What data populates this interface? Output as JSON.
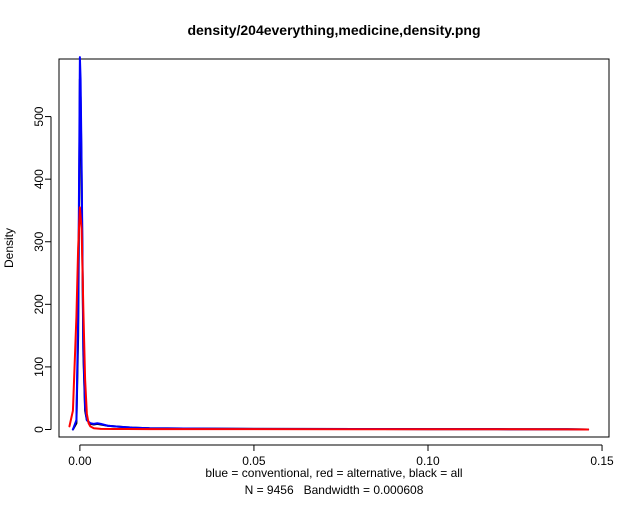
{
  "chart_data": {
    "type": "line",
    "title": "density/204everything,medicine,density.png",
    "ylabel": "Density",
    "xlabel_line1": "blue = conventional, red = alternative, black = all",
    "xlabel_line2": "N = 9456   Bandwidth = 0.000608",
    "xlim": [
      -0.006,
      0.152
    ],
    "ylim": [
      -12,
      592
    ],
    "x_ticks": [
      0.0,
      0.05,
      0.1,
      0.15
    ],
    "x_tick_labels": [
      "0.00",
      "0.05",
      "0.10",
      "0.15"
    ],
    "y_ticks": [
      0,
      100,
      200,
      300,
      400,
      500
    ],
    "y_tick_labels": [
      "0",
      "100",
      "200",
      "300",
      "400",
      "500"
    ],
    "grid": false,
    "series": [
      {
        "name": "all",
        "color": "#000000",
        "x": [
          -0.002,
          -0.001,
          -0.0005,
          -0.0002,
          0.0,
          0.0002,
          0.0005,
          0.001,
          0.0015,
          0.002,
          0.003,
          0.004,
          0.005,
          0.006,
          0.008,
          0.01,
          0.015,
          0.02,
          0.03,
          0.05,
          0.08,
          0.1,
          0.12,
          0.14,
          0.146
        ],
        "y": [
          0,
          10,
          150,
          380,
          560,
          530,
          400,
          120,
          30,
          15,
          9,
          8,
          9,
          8,
          6,
          5,
          3,
          2,
          1.5,
          1,
          0.8,
          0.6,
          0.5,
          0.3,
          0
        ]
      },
      {
        "name": "conventional",
        "color": "#0000ff",
        "x": [
          -0.002,
          -0.001,
          -0.0005,
          -0.0002,
          0.0,
          0.0002,
          0.0005,
          0.001,
          0.0015,
          0.002,
          0.003,
          0.004,
          0.005,
          0.006,
          0.008,
          0.01,
          0.015,
          0.02,
          0.03,
          0.05,
          0.08,
          0.1,
          0.12,
          0.14,
          0.146
        ],
        "y": [
          0,
          15,
          180,
          430,
          595,
          560,
          420,
          130,
          35,
          15,
          10,
          9,
          10,
          9,
          6,
          5,
          3,
          2,
          1.5,
          1,
          0.8,
          0.6,
          0.5,
          0.3,
          0
        ]
      },
      {
        "name": "alternative",
        "color": "#ff0000",
        "x": [
          -0.003,
          -0.002,
          -0.001,
          -0.0005,
          0.0,
          0.0005,
          0.001,
          0.0015,
          0.002,
          0.0025,
          0.003,
          0.004,
          0.006,
          0.01,
          0.02,
          0.05,
          0.08,
          0.1,
          0.12,
          0.14,
          0.146
        ],
        "y": [
          5,
          30,
          180,
          290,
          355,
          320,
          190,
          80,
          25,
          10,
          5,
          2,
          1,
          0.8,
          0.6,
          0.5,
          0.4,
          0.4,
          0.3,
          0.2,
          0
        ]
      }
    ]
  }
}
